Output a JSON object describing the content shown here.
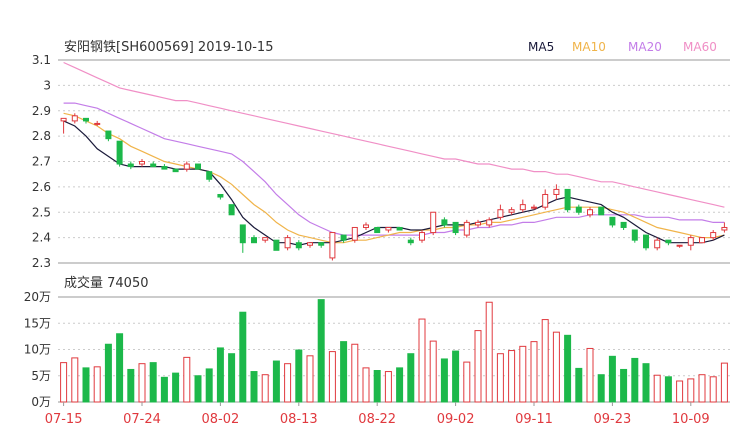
{
  "header": {
    "title": "安阳钢铁[SH600569] 2019-10-15"
  },
  "legend": [
    {
      "label": "MA5",
      "color": "#1a1a3a"
    },
    {
      "label": "MA10",
      "color": "#f0b44a"
    },
    {
      "label": "MA20",
      "color": "#c37de8"
    },
    {
      "label": "MA60",
      "color": "#f08fc6"
    }
  ],
  "colors": {
    "up": "#e0393e",
    "down": "#1cb84a",
    "axis": "#999999"
  },
  "volume_header": {
    "title": "成交量 74050"
  },
  "chart_data": [
    {
      "type": "candlestick",
      "title": "安阳钢铁[SH600569] 2019-10-15",
      "y_ticks": [
        "3.1",
        "3",
        "2.9",
        "2.8",
        "2.7",
        "2.6",
        "2.5",
        "2.4",
        "2.3"
      ],
      "ylim": [
        2.3,
        3.1
      ],
      "x_ticks": [
        {
          "label": "07-15",
          "index": 0
        },
        {
          "label": "07-24",
          "index": 7
        },
        {
          "label": "08-02",
          "index": 14
        },
        {
          "label": "08-13",
          "index": 21
        },
        {
          "label": "08-22",
          "index": 28
        },
        {
          "label": "09-02",
          "index": 35
        },
        {
          "label": "09-11",
          "index": 42
        },
        {
          "label": "09-23",
          "index": 49
        },
        {
          "label": "10-09",
          "index": 56
        }
      ],
      "ohlc": [
        [
          2.86,
          2.87,
          2.81,
          2.87
        ],
        [
          2.86,
          2.89,
          2.85,
          2.88
        ],
        [
          2.87,
          2.87,
          2.85,
          2.86
        ],
        [
          2.85,
          2.86,
          2.84,
          2.85
        ],
        [
          2.82,
          2.82,
          2.78,
          2.79
        ],
        [
          2.78,
          2.78,
          2.68,
          2.69
        ],
        [
          2.69,
          2.7,
          2.67,
          2.68
        ],
        [
          2.69,
          2.71,
          2.68,
          2.7
        ],
        [
          2.69,
          2.7,
          2.68,
          2.68
        ],
        [
          2.68,
          2.69,
          2.67,
          2.67
        ],
        [
          2.67,
          2.67,
          2.66,
          2.66
        ],
        [
          2.67,
          2.7,
          2.66,
          2.69
        ],
        [
          2.69,
          2.69,
          2.67,
          2.67
        ],
        [
          2.66,
          2.66,
          2.62,
          2.63
        ],
        [
          2.57,
          2.57,
          2.55,
          2.56
        ],
        [
          2.53,
          2.53,
          2.49,
          2.49
        ],
        [
          2.45,
          2.45,
          2.34,
          2.38
        ],
        [
          2.4,
          2.41,
          2.38,
          2.38
        ],
        [
          2.39,
          2.4,
          2.38,
          2.4
        ],
        [
          2.39,
          2.39,
          2.35,
          2.35
        ],
        [
          2.36,
          2.41,
          2.35,
          2.4
        ],
        [
          2.38,
          2.39,
          2.35,
          2.36
        ],
        [
          2.37,
          2.38,
          2.36,
          2.38
        ],
        [
          2.38,
          2.38,
          2.36,
          2.37
        ],
        [
          2.32,
          2.42,
          2.31,
          2.42
        ],
        [
          2.41,
          2.41,
          2.38,
          2.39
        ],
        [
          2.39,
          2.44,
          2.38,
          2.44
        ],
        [
          2.44,
          2.46,
          2.43,
          2.45
        ],
        [
          2.44,
          2.44,
          2.42,
          2.42
        ],
        [
          2.43,
          2.44,
          2.42,
          2.44
        ],
        [
          2.44,
          2.44,
          2.43,
          2.43
        ],
        [
          2.39,
          2.4,
          2.37,
          2.38
        ],
        [
          2.39,
          2.43,
          2.38,
          2.42
        ],
        [
          2.42,
          2.5,
          2.41,
          2.5
        ],
        [
          2.47,
          2.48,
          2.44,
          2.45
        ],
        [
          2.46,
          2.46,
          2.41,
          2.42
        ],
        [
          2.41,
          2.47,
          2.4,
          2.46
        ],
        [
          2.45,
          2.47,
          2.44,
          2.46
        ],
        [
          2.45,
          2.48,
          2.44,
          2.47
        ],
        [
          2.48,
          2.53,
          2.47,
          2.51
        ],
        [
          2.5,
          2.52,
          2.49,
          2.51
        ],
        [
          2.51,
          2.55,
          2.5,
          2.53
        ],
        [
          2.52,
          2.53,
          2.51,
          2.52
        ],
        [
          2.52,
          2.59,
          2.51,
          2.57
        ],
        [
          2.57,
          2.61,
          2.55,
          2.59
        ],
        [
          2.59,
          2.59,
          2.5,
          2.51
        ],
        [
          2.52,
          2.53,
          2.49,
          2.5
        ],
        [
          2.49,
          2.52,
          2.48,
          2.51
        ],
        [
          2.52,
          2.52,
          2.49,
          2.49
        ],
        [
          2.48,
          2.48,
          2.44,
          2.45
        ],
        [
          2.46,
          2.46,
          2.43,
          2.44
        ],
        [
          2.43,
          2.43,
          2.38,
          2.39
        ],
        [
          2.41,
          2.41,
          2.35,
          2.36
        ],
        [
          2.36,
          2.4,
          2.35,
          2.39
        ],
        [
          2.39,
          2.39,
          2.37,
          2.38
        ],
        [
          2.37,
          2.37,
          2.36,
          2.37
        ],
        [
          2.37,
          2.41,
          2.35,
          2.4
        ],
        [
          2.38,
          2.4,
          2.38,
          2.4
        ],
        [
          2.4,
          2.43,
          2.39,
          2.42
        ],
        [
          2.43,
          2.46,
          2.42,
          2.44
        ]
      ],
      "ma": {
        "MA5": [
          2.86,
          2.84,
          2.8,
          2.75,
          2.72,
          2.69,
          2.68,
          2.68,
          2.68,
          2.68,
          2.67,
          2.67,
          2.67,
          2.66,
          2.61,
          2.55,
          2.48,
          2.44,
          2.41,
          2.38,
          2.38,
          2.37,
          2.38,
          2.38,
          2.38,
          2.39,
          2.4,
          2.42,
          2.44,
          2.44,
          2.44,
          2.43,
          2.43,
          2.44,
          2.45,
          2.45,
          2.45,
          2.46,
          2.47,
          2.48,
          2.49,
          2.5,
          2.51,
          2.53,
          2.55,
          2.56,
          2.55,
          2.54,
          2.53,
          2.5,
          2.48,
          2.45,
          2.42,
          2.4,
          2.38,
          2.38,
          2.38,
          2.38,
          2.39,
          2.41
        ],
        "MA10": [
          2.89,
          2.88,
          2.86,
          2.84,
          2.81,
          2.79,
          2.76,
          2.74,
          2.72,
          2.7,
          2.69,
          2.68,
          2.67,
          2.66,
          2.64,
          2.61,
          2.57,
          2.53,
          2.5,
          2.46,
          2.43,
          2.41,
          2.4,
          2.39,
          2.38,
          2.38,
          2.39,
          2.39,
          2.4,
          2.41,
          2.42,
          2.42,
          2.43,
          2.43,
          2.44,
          2.44,
          2.45,
          2.45,
          2.46,
          2.46,
          2.47,
          2.48,
          2.49,
          2.5,
          2.51,
          2.52,
          2.52,
          2.52,
          2.52,
          2.51,
          2.5,
          2.48,
          2.46,
          2.44,
          2.43,
          2.42,
          2.41,
          2.4,
          2.4,
          2.41
        ],
        "MA20": [
          2.93,
          2.93,
          2.92,
          2.91,
          2.89,
          2.87,
          2.85,
          2.83,
          2.81,
          2.79,
          2.78,
          2.77,
          2.76,
          2.75,
          2.74,
          2.73,
          2.7,
          2.66,
          2.62,
          2.57,
          2.53,
          2.49,
          2.46,
          2.44,
          2.42,
          2.41,
          2.41,
          2.41,
          2.41,
          2.41,
          2.41,
          2.41,
          2.41,
          2.42,
          2.42,
          2.43,
          2.43,
          2.44,
          2.44,
          2.45,
          2.45,
          2.46,
          2.46,
          2.47,
          2.48,
          2.48,
          2.48,
          2.49,
          2.49,
          2.49,
          2.49,
          2.49,
          2.48,
          2.48,
          2.48,
          2.47,
          2.47,
          2.47,
          2.46,
          2.46
        ],
        "MA60": [
          3.09,
          3.07,
          3.05,
          3.03,
          3.01,
          2.99,
          2.98,
          2.97,
          2.96,
          2.95,
          2.94,
          2.94,
          2.93,
          2.92,
          2.91,
          2.9,
          2.89,
          2.88,
          2.87,
          2.86,
          2.85,
          2.84,
          2.83,
          2.82,
          2.81,
          2.8,
          2.79,
          2.78,
          2.77,
          2.76,
          2.75,
          2.74,
          2.73,
          2.72,
          2.71,
          2.71,
          2.7,
          2.69,
          2.69,
          2.68,
          2.67,
          2.67,
          2.66,
          2.66,
          2.65,
          2.65,
          2.64,
          2.63,
          2.62,
          2.62,
          2.61,
          2.6,
          2.59,
          2.58,
          2.57,
          2.56,
          2.55,
          2.54,
          2.53,
          2.52
        ]
      }
    },
    {
      "type": "bar",
      "title": "成交量 74050",
      "y_ticks": [
        "20万",
        "15万",
        "10万",
        "5万",
        "0万"
      ],
      "ylim": [
        0,
        200000
      ],
      "values": [
        75000,
        84000,
        65000,
        67000,
        110000,
        130000,
        62000,
        73000,
        75000,
        47000,
        55000,
        85000,
        50000,
        63000,
        103000,
        92000,
        171000,
        58000,
        52000,
        78000,
        73000,
        99000,
        88000,
        195000,
        96000,
        115000,
        110000,
        65000,
        60000,
        58000,
        65000,
        92000,
        158000,
        116000,
        82000,
        97000,
        76000,
        136000,
        190000,
        92000,
        98000,
        106000,
        115000,
        157000,
        133000,
        127000,
        64000,
        102000,
        52000,
        87000,
        62000,
        83000,
        73000,
        51000,
        48000,
        40000,
        44000,
        52000,
        48000,
        74050
      ]
    }
  ]
}
